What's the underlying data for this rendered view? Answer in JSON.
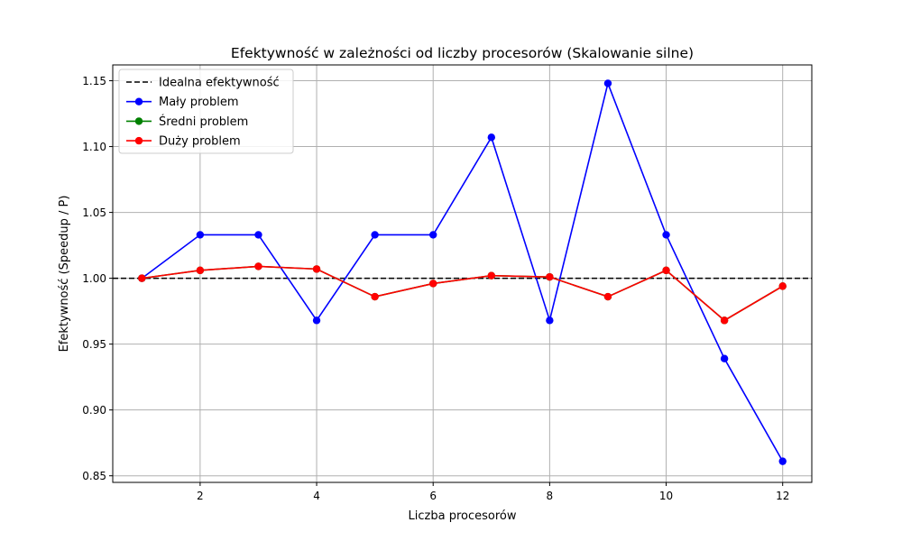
{
  "chart_data": {
    "type": "line",
    "title": "Efektywność w zależności od liczby procesorów (Skalowanie silne)",
    "xlabel": "Liczba procesorów",
    "ylabel": "Efektywność (Speedup / P)",
    "xlim": [
      0.5,
      12.5
    ],
    "ylim": [
      0.845,
      1.162
    ],
    "xticks": [
      2,
      4,
      6,
      8,
      10,
      12
    ],
    "yticks": [
      0.85,
      0.9,
      0.95,
      1.0,
      1.05,
      1.1,
      1.15
    ],
    "xtick_labels": [
      "2",
      "4",
      "6",
      "8",
      "10",
      "12"
    ],
    "ytick_labels": [
      "0.85",
      "0.90",
      "0.95",
      "1.00",
      "1.05",
      "1.10",
      "1.15"
    ],
    "grid": true,
    "legend_position": "top-left",
    "reference_line": {
      "name": "Idealna efektywność",
      "y": 1.0,
      "color": "#000000",
      "style": "dashed"
    },
    "x": [
      1,
      2,
      3,
      4,
      5,
      6,
      7,
      8,
      9,
      10,
      11,
      12
    ],
    "series": [
      {
        "name": "Mały problem",
        "color": "#0000ff",
        "values": [
          1.0,
          1.033,
          1.033,
          0.968,
          1.033,
          1.033,
          1.107,
          0.968,
          1.148,
          1.033,
          0.939,
          0.861
        ]
      },
      {
        "name": "Średni problem",
        "color": "#008000",
        "values": [
          1.0,
          1.006,
          1.009,
          1.007,
          0.986,
          0.996,
          1.002,
          1.001,
          0.986,
          1.006,
          0.968,
          0.994
        ]
      },
      {
        "name": "Duży problem",
        "color": "#ff0000",
        "values": [
          1.0,
          1.006,
          1.009,
          1.007,
          0.986,
          0.996,
          1.002,
          1.001,
          0.986,
          1.006,
          0.968,
          0.994
        ]
      }
    ]
  }
}
